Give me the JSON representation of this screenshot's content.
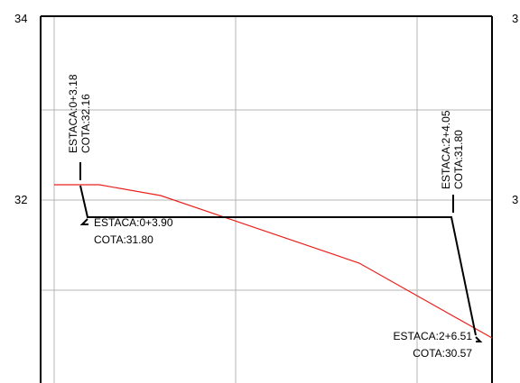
{
  "axis": {
    "left_ticks": [
      "34",
      "32"
    ],
    "right_ticks": [
      "3",
      "3"
    ]
  },
  "annotations": {
    "a1": {
      "station": "ESTACA:0+3.18",
      "elevation": "COTA:32.16"
    },
    "a2": {
      "station": "ESTACA:0+3.90",
      "elevation": "COTA:31.80"
    },
    "a3": {
      "station": "ESTACA:2+4.05",
      "elevation": "COTA:31.80"
    },
    "a4": {
      "station": "ESTACA:2+6.51",
      "elevation": "COTA:30.57"
    }
  },
  "colors": {
    "terrain": "#e8211c",
    "design": "#000000",
    "grid": "#b4b4b4",
    "frame": "#000000"
  }
}
